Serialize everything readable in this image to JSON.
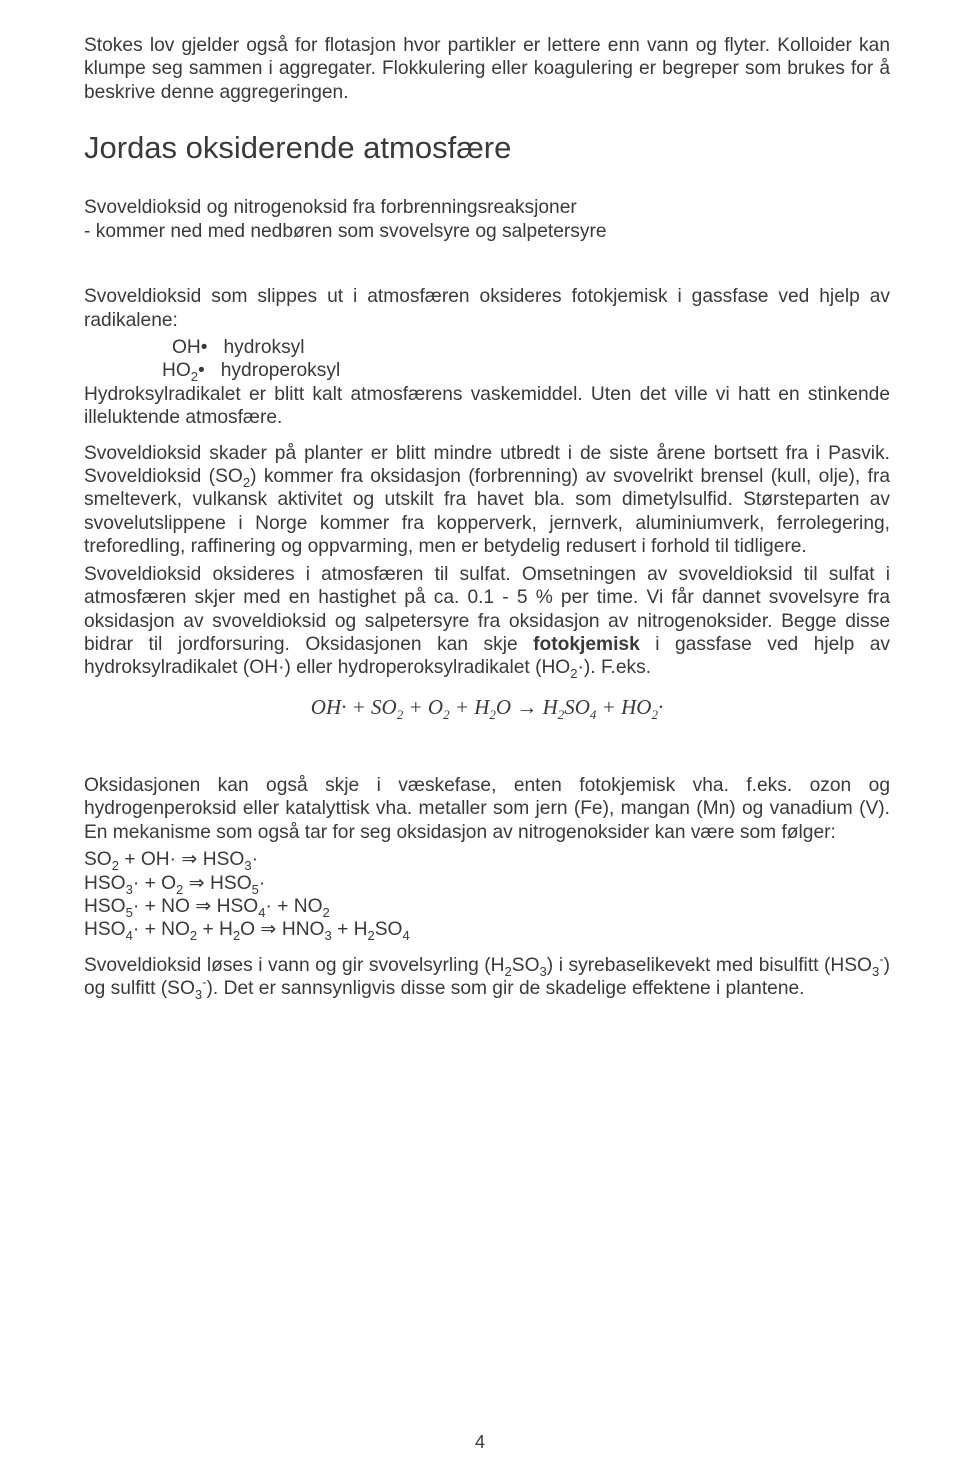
{
  "para_intro": "Stokes lov gjelder også for flotasjon hvor partikler er lettere enn vann og flyter. Kolloider kan klumpe seg sammen i  aggregater. Flokkulering eller koagulering er begreper som brukes for å beskrive denne  aggregeringen.",
  "heading": "Jordas oksiderende atmosfære",
  "para_2a": "Svoveldioksid og nitrogenoksid fra forbrenningsreaksjoner",
  "para_2b": " - kommer ned med nedbøren som svovelsyre og salpetersyre",
  "para_3": "Svoveldioksid som slippes ut i atmosfæren oksideres fotokjemisk i gassfase ved hjelp av radikalene:",
  "rad_1_pre": "OH",
  "rad_1_post": "hydroksyl",
  "rad_2_pre": "HO",
  "rad_2_sub": "2",
  "rad_2_post": "hydroperoksyl",
  "para_4": "Hydroksylradikalet er blitt kalt atmosfærens vaskemiddel. Uten det ville vi hatt en stinkende illeluktende atmosfære.",
  "para_5_html": "Svoveldioksid skader på planter er blitt mindre utbredt i de siste årene bortsett fra i Pasvik. Svoveldioksid (SO<sub>2</sub>) kommer fra oksidasjon (forbrenning) av svovelrikt brensel (kull, olje), fra smelteverk, vulkansk aktivitet og utskilt fra havet bla. som dimetylsulfid. Størsteparten av svovelutslippene i Norge  kommer fra kopperverk, jernverk, aluminiumverk, ferrolegering, treforedling, raffinering og oppvarming, men er betydelig redusert i forhold til tidligere.",
  "para_5b_html": "Svoveldioksid oksideres i atmosfæren til sulfat. Omsetningen av svoveldioksid til sulfat i atmosfæren skjer med en hastighet på ca. 0.1 - 5 % per time.  Vi får dannet svovelsyre fra oksidasjon av svoveldioksid og salpetersyre fra oksidasjon av nitrogenoksider. Begge disse bidrar til jordforsuring. Oksidasjonen kan skje <span class=\"b\">fotokjemisk</span> i gassfase ved hjelp av hydroksylradikalet (OH·) eller hydroperoksylradikalet (HO<sub>2</sub>·). F.eks.",
  "equation": "OH·  +  SO<span class=\"sub\">2</span>  +  O<span class=\"sub\">2</span>  +  H<span class=\"sub\">2</span>O  →  H<span class=\"sub\">2</span>SO<span class=\"sub\">4</span>  +  HO<span class=\"sub\">2</span>·",
  "para_6": "Oksidasjonen kan også skje i væskefase, enten fotokjemisk vha. f.eks. ozon og hydrogenperoksid eller katalyttisk vha. metaller som jern (Fe), mangan (Mn) og vanadium (V). En mekanisme som også tar for seg oksidasjon av nitrogenoksider kan være som følger:",
  "mech_1": "SO<sub>2</sub> + OH· ⇒ HSO<sub>3</sub>·",
  "mech_2": "HSO<sub>3</sub>· + O<sub>2</sub> ⇒ HSO<sub>5</sub>·",
  "mech_3": "HSO<sub>5</sub>· + NO ⇒ HSO<sub>4</sub>· + NO<sub>2</sub>",
  "mech_4": "HSO<sub>4</sub>· + NO<sub>2</sub> + H<sub>2</sub>O ⇒ HNO<sub>3</sub> + H<sub>2</sub>SO<sub>4</sub>",
  "para_7": " Svoveldioksid løses i vann og gir svovelsyrling (H<sub>2</sub>SO<sub>3</sub>) i syrebaselikevekt med bisulfitt (HSO<sub>3</sub><sup>-</sup>) og sulfitt (SO<sub>3</sub><sup>-</sup>). Det er sannsynligvis disse som gir de skadelige effektene i plantene.",
  "pagenum": "4"
}
